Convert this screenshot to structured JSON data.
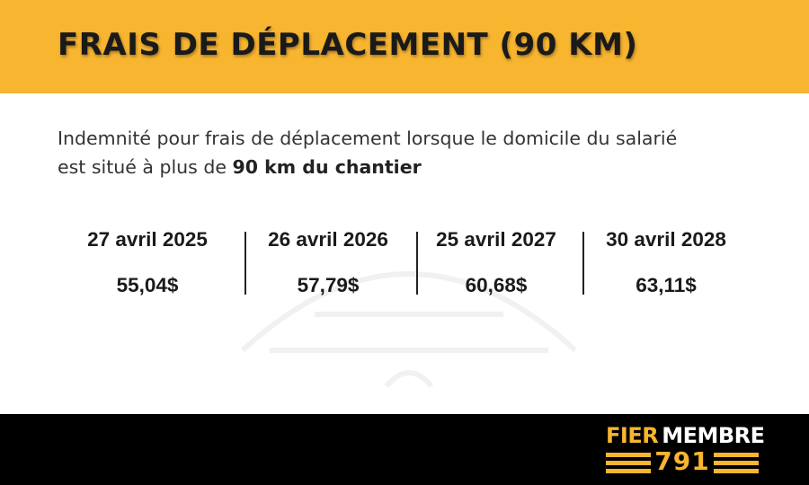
{
  "header": {
    "title": "FRAIS DE DÉPLACEMENT (90 KM)",
    "background_color": "#f8b530"
  },
  "intro": {
    "text_part1": "Indemnité pour frais de déplacement lorsque le domicile du salarié est situé à plus de ",
    "text_bold": "90 km du chantier"
  },
  "rates": [
    {
      "date": "27 avril 2025",
      "amount": "55,04$"
    },
    {
      "date": "26 avril 2026",
      "amount": "57,79$"
    },
    {
      "date": "25 avril 2027",
      "amount": "60,68$"
    },
    {
      "date": "30 avril 2028",
      "amount": "63,11$"
    }
  ],
  "footer": {
    "background_color": "#000000",
    "logo": {
      "word1": "FIER",
      "word2": "MEMBRE",
      "number": "791",
      "accent_color": "#f8b530"
    }
  }
}
